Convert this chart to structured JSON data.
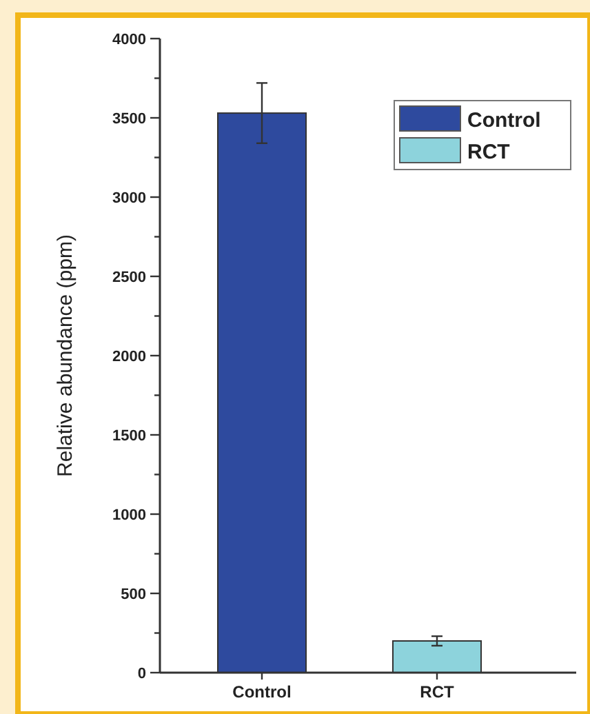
{
  "chart_data": {
    "type": "bar",
    "ylabel": "Relative abundance (ppm)",
    "categories": [
      "Control",
      "RCT"
    ],
    "series": [
      {
        "name": "Control",
        "color": "#2e4a9e",
        "values": [
          3530,
          null
        ],
        "errors": [
          190,
          null
        ]
      },
      {
        "name": "RCT",
        "color": "#8dd3dc",
        "values": [
          null,
          200
        ],
        "errors": [
          null,
          30
        ]
      }
    ],
    "ylim": [
      0,
      4000
    ],
    "yticks": [
      0,
      {
        "value": 250,
        "label": null
      },
      500,
      {
        "value": 750,
        "label": null
      },
      1000,
      {
        "value": 1250,
        "label": null
      },
      1500,
      {
        "value": 1750,
        "label": null
      },
      2000,
      {
        "value": 2250,
        "label": null
      },
      2500,
      {
        "value": 2750,
        "label": null
      },
      3000,
      {
        "value": 3250,
        "label": null
      },
      3500,
      {
        "value": 3750,
        "label": null
      },
      4000
    ],
    "legend": "top right",
    "grid": false
  }
}
